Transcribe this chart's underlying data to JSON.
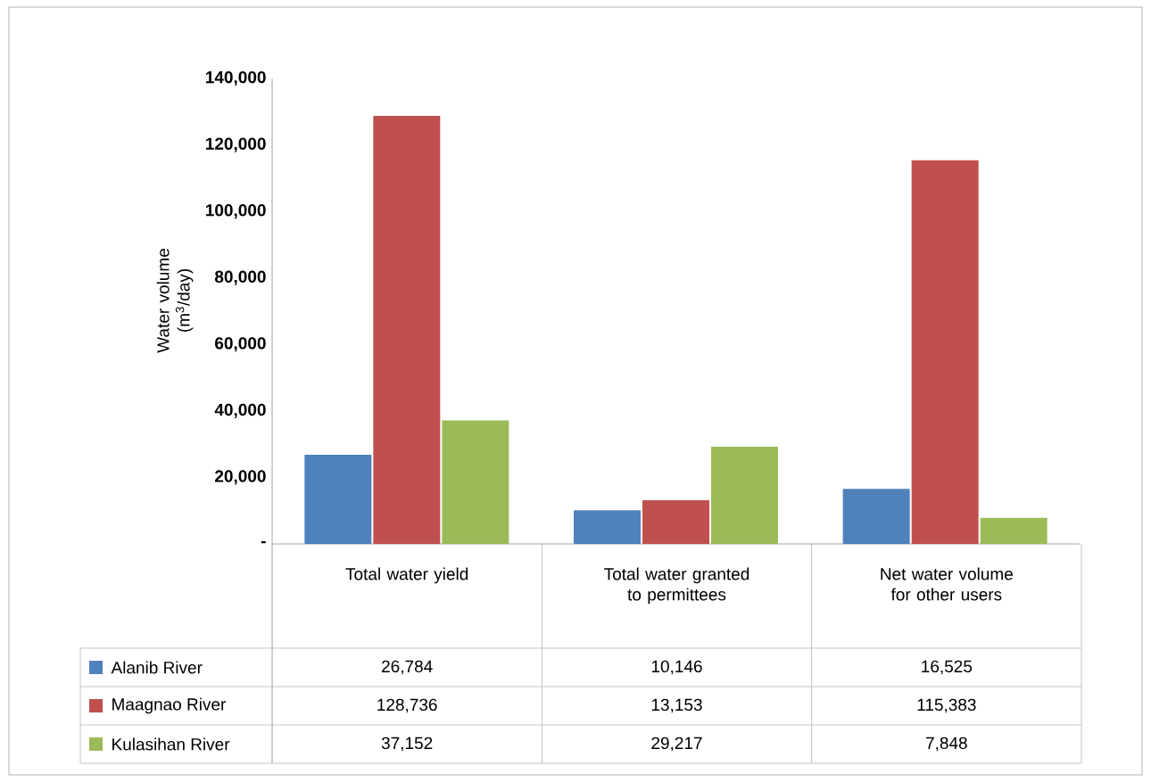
{
  "chart_data": {
    "type": "bar",
    "ylabel": "Water volume (m$^{3}$/day)",
    "categories": [
      "Total water yield",
      "Total water granted to permittees",
      "Net water volume for other users"
    ],
    "series": [
      {
        "name": "Alanib River",
        "color": "#4f81bd",
        "values": [
          26784,
          10146,
          16525
        ],
        "value_labels": [
          "26,784",
          "10,146",
          "16,525"
        ]
      },
      {
        "name": "Maagnao River",
        "color": "#c0504d",
        "values": [
          128736,
          13153,
          115383
        ],
        "value_labels": [
          "128,736",
          "13,153",
          "115,383"
        ]
      },
      {
        "name": "Kulasihan River",
        "color": "#9bbb59",
        "values": [
          37152,
          29217,
          7848
        ],
        "value_labels": [
          "37,152",
          "29,217",
          "7,848"
        ]
      }
    ],
    "ylim": [
      0,
      140000
    ],
    "yticks": [
      {
        "value": 0,
        "label": "-"
      },
      {
        "value": 20000,
        "label": "20,000"
      },
      {
        "value": 40000,
        "label": "40,000"
      },
      {
        "value": 60000,
        "label": "60,000"
      },
      {
        "value": 80000,
        "label": "80,000"
      },
      {
        "value": 100000,
        "label": "100,000"
      },
      {
        "value": 120000,
        "label": "120,000"
      },
      {
        "value": 140000,
        "label": "140,000"
      }
    ],
    "grid": false,
    "legend": "bottom"
  }
}
